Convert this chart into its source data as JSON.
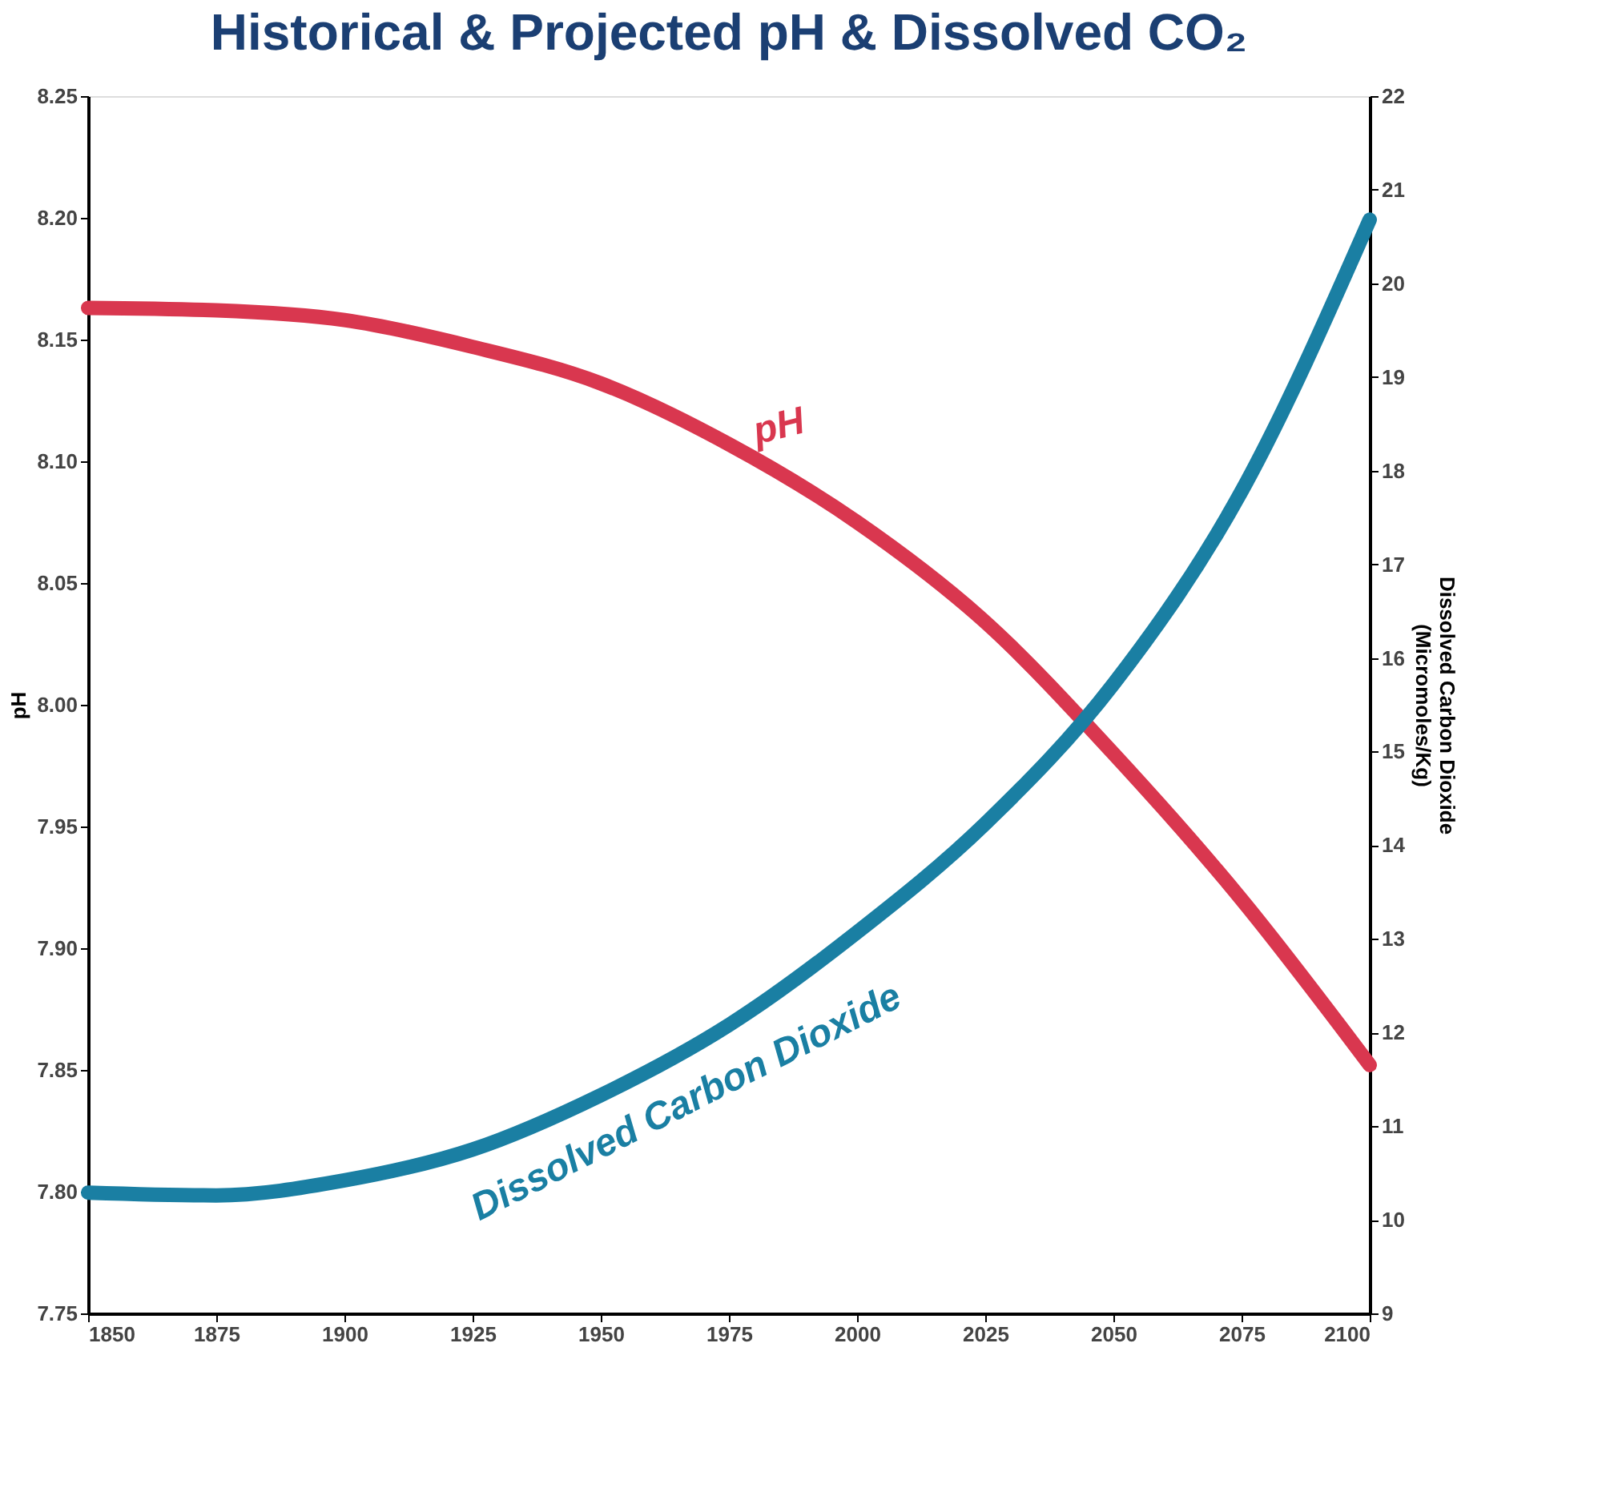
{
  "chart_data": {
    "type": "line",
    "title": "Historical & Projected pH & Dissolved CO₂",
    "x": [
      1850,
      1875,
      1900,
      1925,
      1950,
      1975,
      2000,
      2025,
      2050,
      2075,
      2100
    ],
    "series": [
      {
        "name": "pH",
        "color": "#d9374f",
        "values": [
          8.163,
          8.162,
          8.158,
          8.147,
          8.132,
          8.107,
          8.075,
          8.034,
          7.98,
          7.92,
          7.852
        ]
      },
      {
        "name": "Dissolved Carbon Dioxide",
        "color": "#1a7fa3",
        "axis": "y2",
        "values": [
          10.29,
          10.26,
          10.42,
          10.75,
          11.33,
          12.08,
          13.07,
          14.23,
          15.72,
          17.78,
          20.68
        ]
      }
    ],
    "ylabel": "pH",
    "y2label": "Dissolved Carbon Dioxide (Micromoles/Kg)",
    "xlim": [
      1850,
      2100
    ],
    "xticks": [
      1850,
      1875,
      1900,
      1925,
      1950,
      1975,
      2000,
      2025,
      2050,
      2075,
      2100
    ],
    "ylim": [
      7.75,
      8.25
    ],
    "yticks": [
      {
        "value": 7.75,
        "label": "7.75"
      },
      {
        "value": 7.8,
        "label": "7.80"
      },
      {
        "value": 7.85,
        "label": "7.85"
      },
      {
        "value": 7.9,
        "label": "7.90"
      },
      {
        "value": 7.95,
        "label": "7.95"
      },
      {
        "value": 8.0,
        "label": "8.00"
      },
      {
        "value": 8.05,
        "label": "8.05"
      },
      {
        "value": 8.1,
        "label": "8.10"
      },
      {
        "value": 8.15,
        "label": "8.15"
      },
      {
        "value": 8.2,
        "label": "8.20"
      },
      {
        "value": 8.25,
        "label": "8.25"
      }
    ],
    "y2lim": [
      9,
      22
    ],
    "y2ticks": [
      9,
      10,
      11,
      12,
      13,
      14,
      15,
      16,
      17,
      18,
      19,
      20,
      21,
      22
    ],
    "grid": false,
    "legend": false,
    "line_style": "solid"
  }
}
